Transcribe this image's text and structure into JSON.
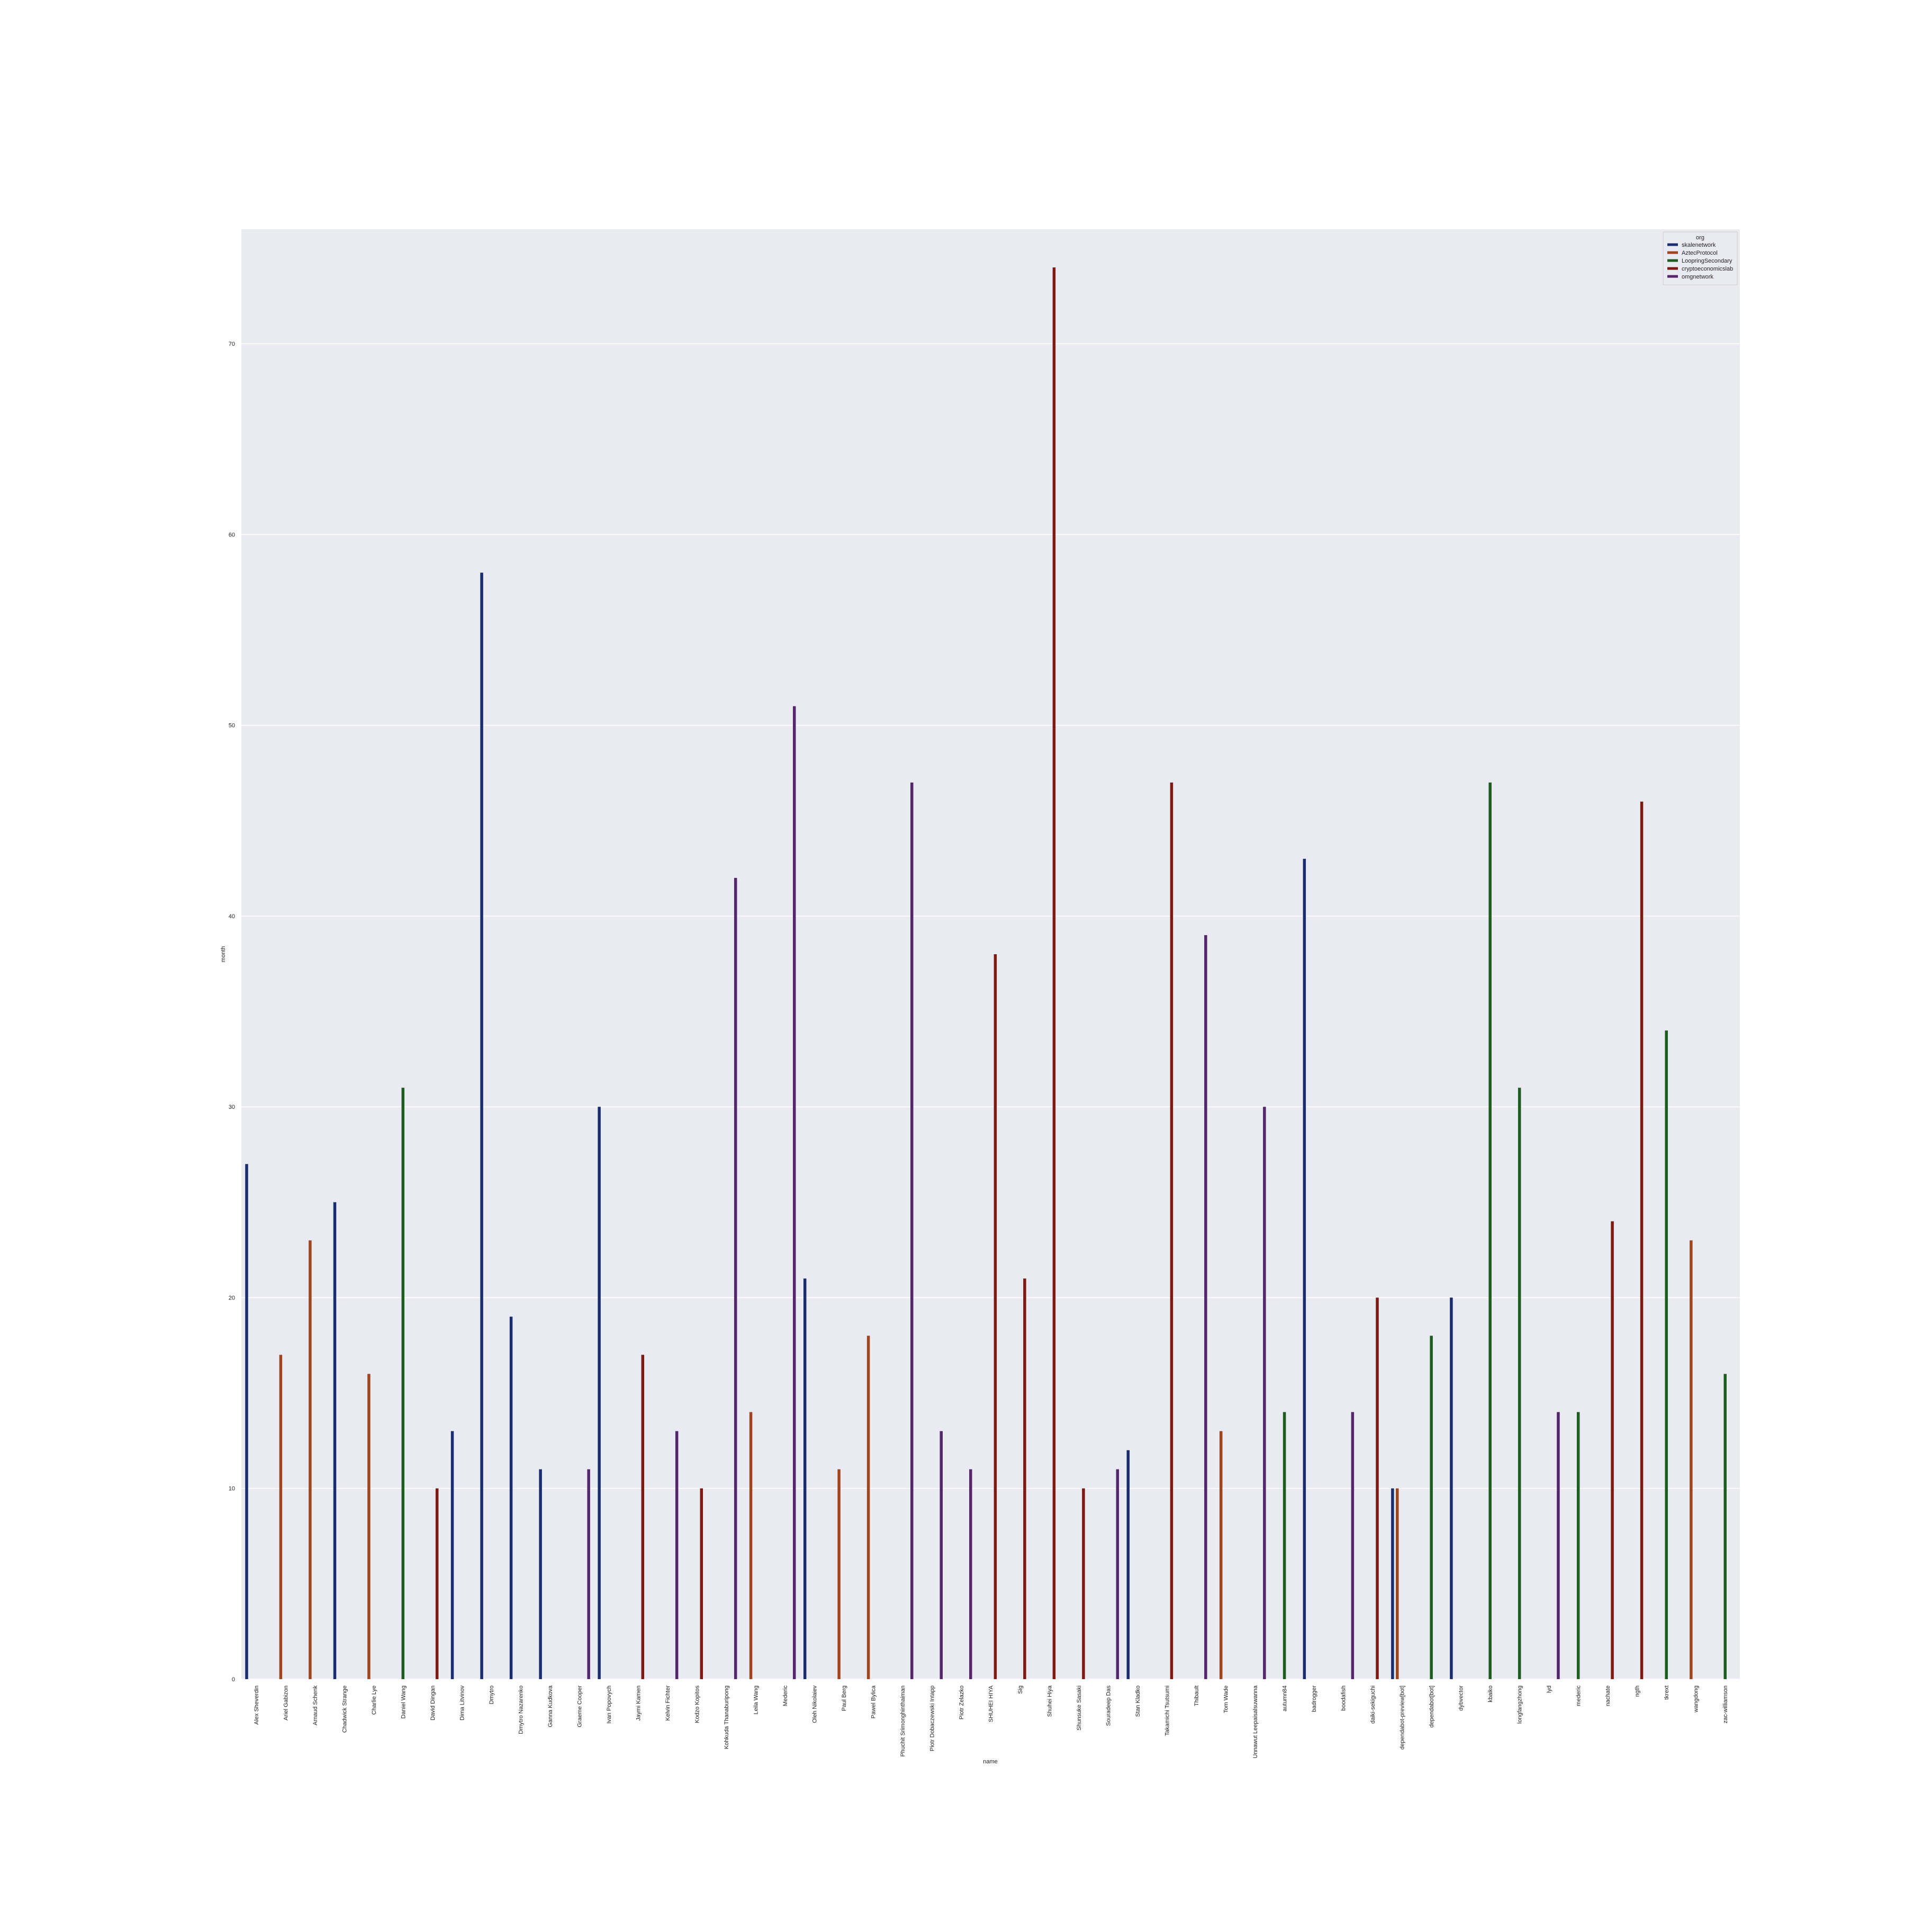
{
  "chart_data": {
    "type": "bar",
    "title": "",
    "xlabel": "name",
    "ylabel": "month",
    "ylim": [
      0,
      76
    ],
    "yticks": [
      0,
      10,
      20,
      30,
      40,
      50,
      60,
      70
    ],
    "grid": true,
    "legend": {
      "title": "org",
      "placement": "top-right",
      "entries": [
        "skalenetwork",
        "AztecProtocol",
        "LoopringSecondary",
        "cryptoeconomicslab",
        "omgnetwork"
      ]
    },
    "series_colors": {
      "skalenetwork": "#1a2d6e",
      "AztecProtocol": "#a0461f",
      "LoopringSecondary": "#1d5e1e",
      "cryptoeconomicslab": "#7e1a12",
      "omgnetwork": "#54266b"
    },
    "categories": [
      "Alex Sheverdin",
      "Ariel Gabizon",
      "Arnaud Schenk",
      "Chadwick Strange",
      "Charlie Lye",
      "Daniel Wang",
      "David Dingan",
      "Dima Litvinov",
      "Dmytro",
      "Dmytro Nazarenko",
      "Ganna Kudkova",
      "Graeme Cooper",
      "Ivan Popovych",
      "Jaymi Kamen",
      "Kelvin Fichter",
      "Kodzo Kopitos",
      "Kohkuda Thanaburipong",
      "Leila Wang",
      "Mederic",
      "Oleh Nikolaiev",
      "Paul Berg",
      "Pawel Bylica",
      "Phuchit Srimonghinthaiman",
      "Piotr Dobaczewski Intapp",
      "Piotr Zelazko",
      "SHUHEI HIYA",
      "Sig",
      "Shuhei Hiya",
      "Shunsuke Sasaki",
      "Souradeep Das",
      "Stan Kladko",
      "Takamichi Tsutsumi",
      "Thibault",
      "Tom Wade",
      "Unnawut Leepaisalsuwanna",
      "autumn84",
      "badrogger",
      "boodafish",
      "daiki-sekiguchi",
      "dependabot-preview[bot]",
      "dependabot[bot]",
      "dybvector",
      "kbaiko",
      "longfangzhong",
      "lyd",
      "mederic",
      "nachate",
      "ngth",
      "tkrext",
      "wangdong",
      "zac-williamson"
    ],
    "bars": [
      {
        "category": "Alex Sheverdin",
        "org": "skalenetwork",
        "value": 27
      },
      {
        "category": "Ariel Gabizon",
        "org": "AztecProtocol",
        "value": 17
      },
      {
        "category": "Arnaud Schenk",
        "org": "AztecProtocol",
        "value": 23
      },
      {
        "category": "Chadwick Strange",
        "org": "skalenetwork",
        "value": 25
      },
      {
        "category": "Charlie Lye",
        "org": "AztecProtocol",
        "value": 16
      },
      {
        "category": "Daniel Wang",
        "org": "LoopringSecondary",
        "value": 31
      },
      {
        "category": "David Dingan",
        "org": "cryptoeconomicslab",
        "value": 10
      },
      {
        "category": "Dima Litvinov",
        "org": "skalenetwork",
        "value": 13
      },
      {
        "category": "Dmytro",
        "org": "skalenetwork",
        "value": 58
      },
      {
        "category": "Dmytro Nazarenko",
        "org": "skalenetwork",
        "value": 19
      },
      {
        "category": "Ganna Kudkova",
        "org": "skalenetwork",
        "value": 11
      },
      {
        "category": "Graeme Cooper",
        "org": "omgnetwork",
        "value": 11
      },
      {
        "category": "Ivan Popovych",
        "org": "skalenetwork",
        "value": 30
      },
      {
        "category": "Jaymi Kamen",
        "org": "cryptoeconomicslab",
        "value": 17
      },
      {
        "category": "Kelvin Fichter",
        "org": "omgnetwork",
        "value": 13
      },
      {
        "category": "Kodzo Kopitos",
        "org": "cryptoeconomicslab",
        "value": 10
      },
      {
        "category": "Kohkuda Thanaburipong",
        "org": "omgnetwork",
        "value": 42
      },
      {
        "category": "Leila Wang",
        "org": "AztecProtocol",
        "value": 14
      },
      {
        "category": "Mederic",
        "org": "omgnetwork",
        "value": 51
      },
      {
        "category": "Oleh Nikolaiev",
        "org": "skalenetwork",
        "value": 21
      },
      {
        "category": "Paul Berg",
        "org": "AztecProtocol",
        "value": 11
      },
      {
        "category": "Pawel Bylica",
        "org": "AztecProtocol",
        "value": 18
      },
      {
        "category": "Phuchit Srimonghinthaiman",
        "org": "omgnetwork",
        "value": 47
      },
      {
        "category": "Piotr Dobaczewski Intapp",
        "org": "omgnetwork",
        "value": 13
      },
      {
        "category": "Piotr Zelazko",
        "org": "omgnetwork",
        "value": 11
      },
      {
        "category": "SHUHEI HIYA",
        "org": "cryptoeconomicslab",
        "value": 38
      },
      {
        "category": "Sig",
        "org": "cryptoeconomicslab",
        "value": 21
      },
      {
        "category": "Shuhei Hiya",
        "org": "cryptoeconomicslab",
        "value": 74
      },
      {
        "category": "Shunsuke Sasaki",
        "org": "cryptoeconomicslab",
        "value": 10
      },
      {
        "category": "Souradeep Das",
        "org": "omgnetwork",
        "value": 11
      },
      {
        "category": "Stan Kladko",
        "org": "skalenetwork",
        "value": 12
      },
      {
        "category": "Takamichi Tsutsumi",
        "org": "cryptoeconomicslab",
        "value": 47
      },
      {
        "category": "Thibault",
        "org": "omgnetwork",
        "value": 39
      },
      {
        "category": "Tom Wade",
        "org": "AztecProtocol",
        "value": 13
      },
      {
        "category": "Unnawut Leepaisalsuwanna",
        "org": "omgnetwork",
        "value": 30
      },
      {
        "category": "autumn84",
        "org": "LoopringSecondary",
        "value": 14
      },
      {
        "category": "badrogger",
        "org": "skalenetwork",
        "value": 43
      },
      {
        "category": "boodafish",
        "org": "omgnetwork",
        "value": 14
      },
      {
        "category": "daiki-sekiguchi",
        "org": "cryptoeconomicslab",
        "value": 20
      },
      {
        "category": "dependabot-preview[bot]",
        "org": "skalenetwork",
        "value": 10
      },
      {
        "category": "dependabot-preview[bot]",
        "org": "AztecProtocol",
        "value": 10
      },
      {
        "category": "dependabot[bot]",
        "org": "LoopringSecondary",
        "value": 18
      },
      {
        "category": "dybvector",
        "org": "skalenetwork",
        "value": 20
      },
      {
        "category": "kbaiko",
        "org": "LoopringSecondary",
        "value": 47
      },
      {
        "category": "longfangzhong",
        "org": "LoopringSecondary",
        "value": 31
      },
      {
        "category": "lyd",
        "org": "omgnetwork",
        "value": 14
      },
      {
        "category": "mederic",
        "org": "LoopringSecondary",
        "value": 14
      },
      {
        "category": "nachate",
        "org": "cryptoeconomicslab",
        "value": 24
      },
      {
        "category": "ngth",
        "org": "cryptoeconomicslab",
        "value": 46
      },
      {
        "category": "tkrext",
        "org": "LoopringSecondary",
        "value": 34
      },
      {
        "category": "wangdong",
        "org": "AztecProtocol",
        "value": 23
      },
      {
        "category": "zac-williamson",
        "org": "LoopringSecondary",
        "value": 16
      }
    ]
  }
}
